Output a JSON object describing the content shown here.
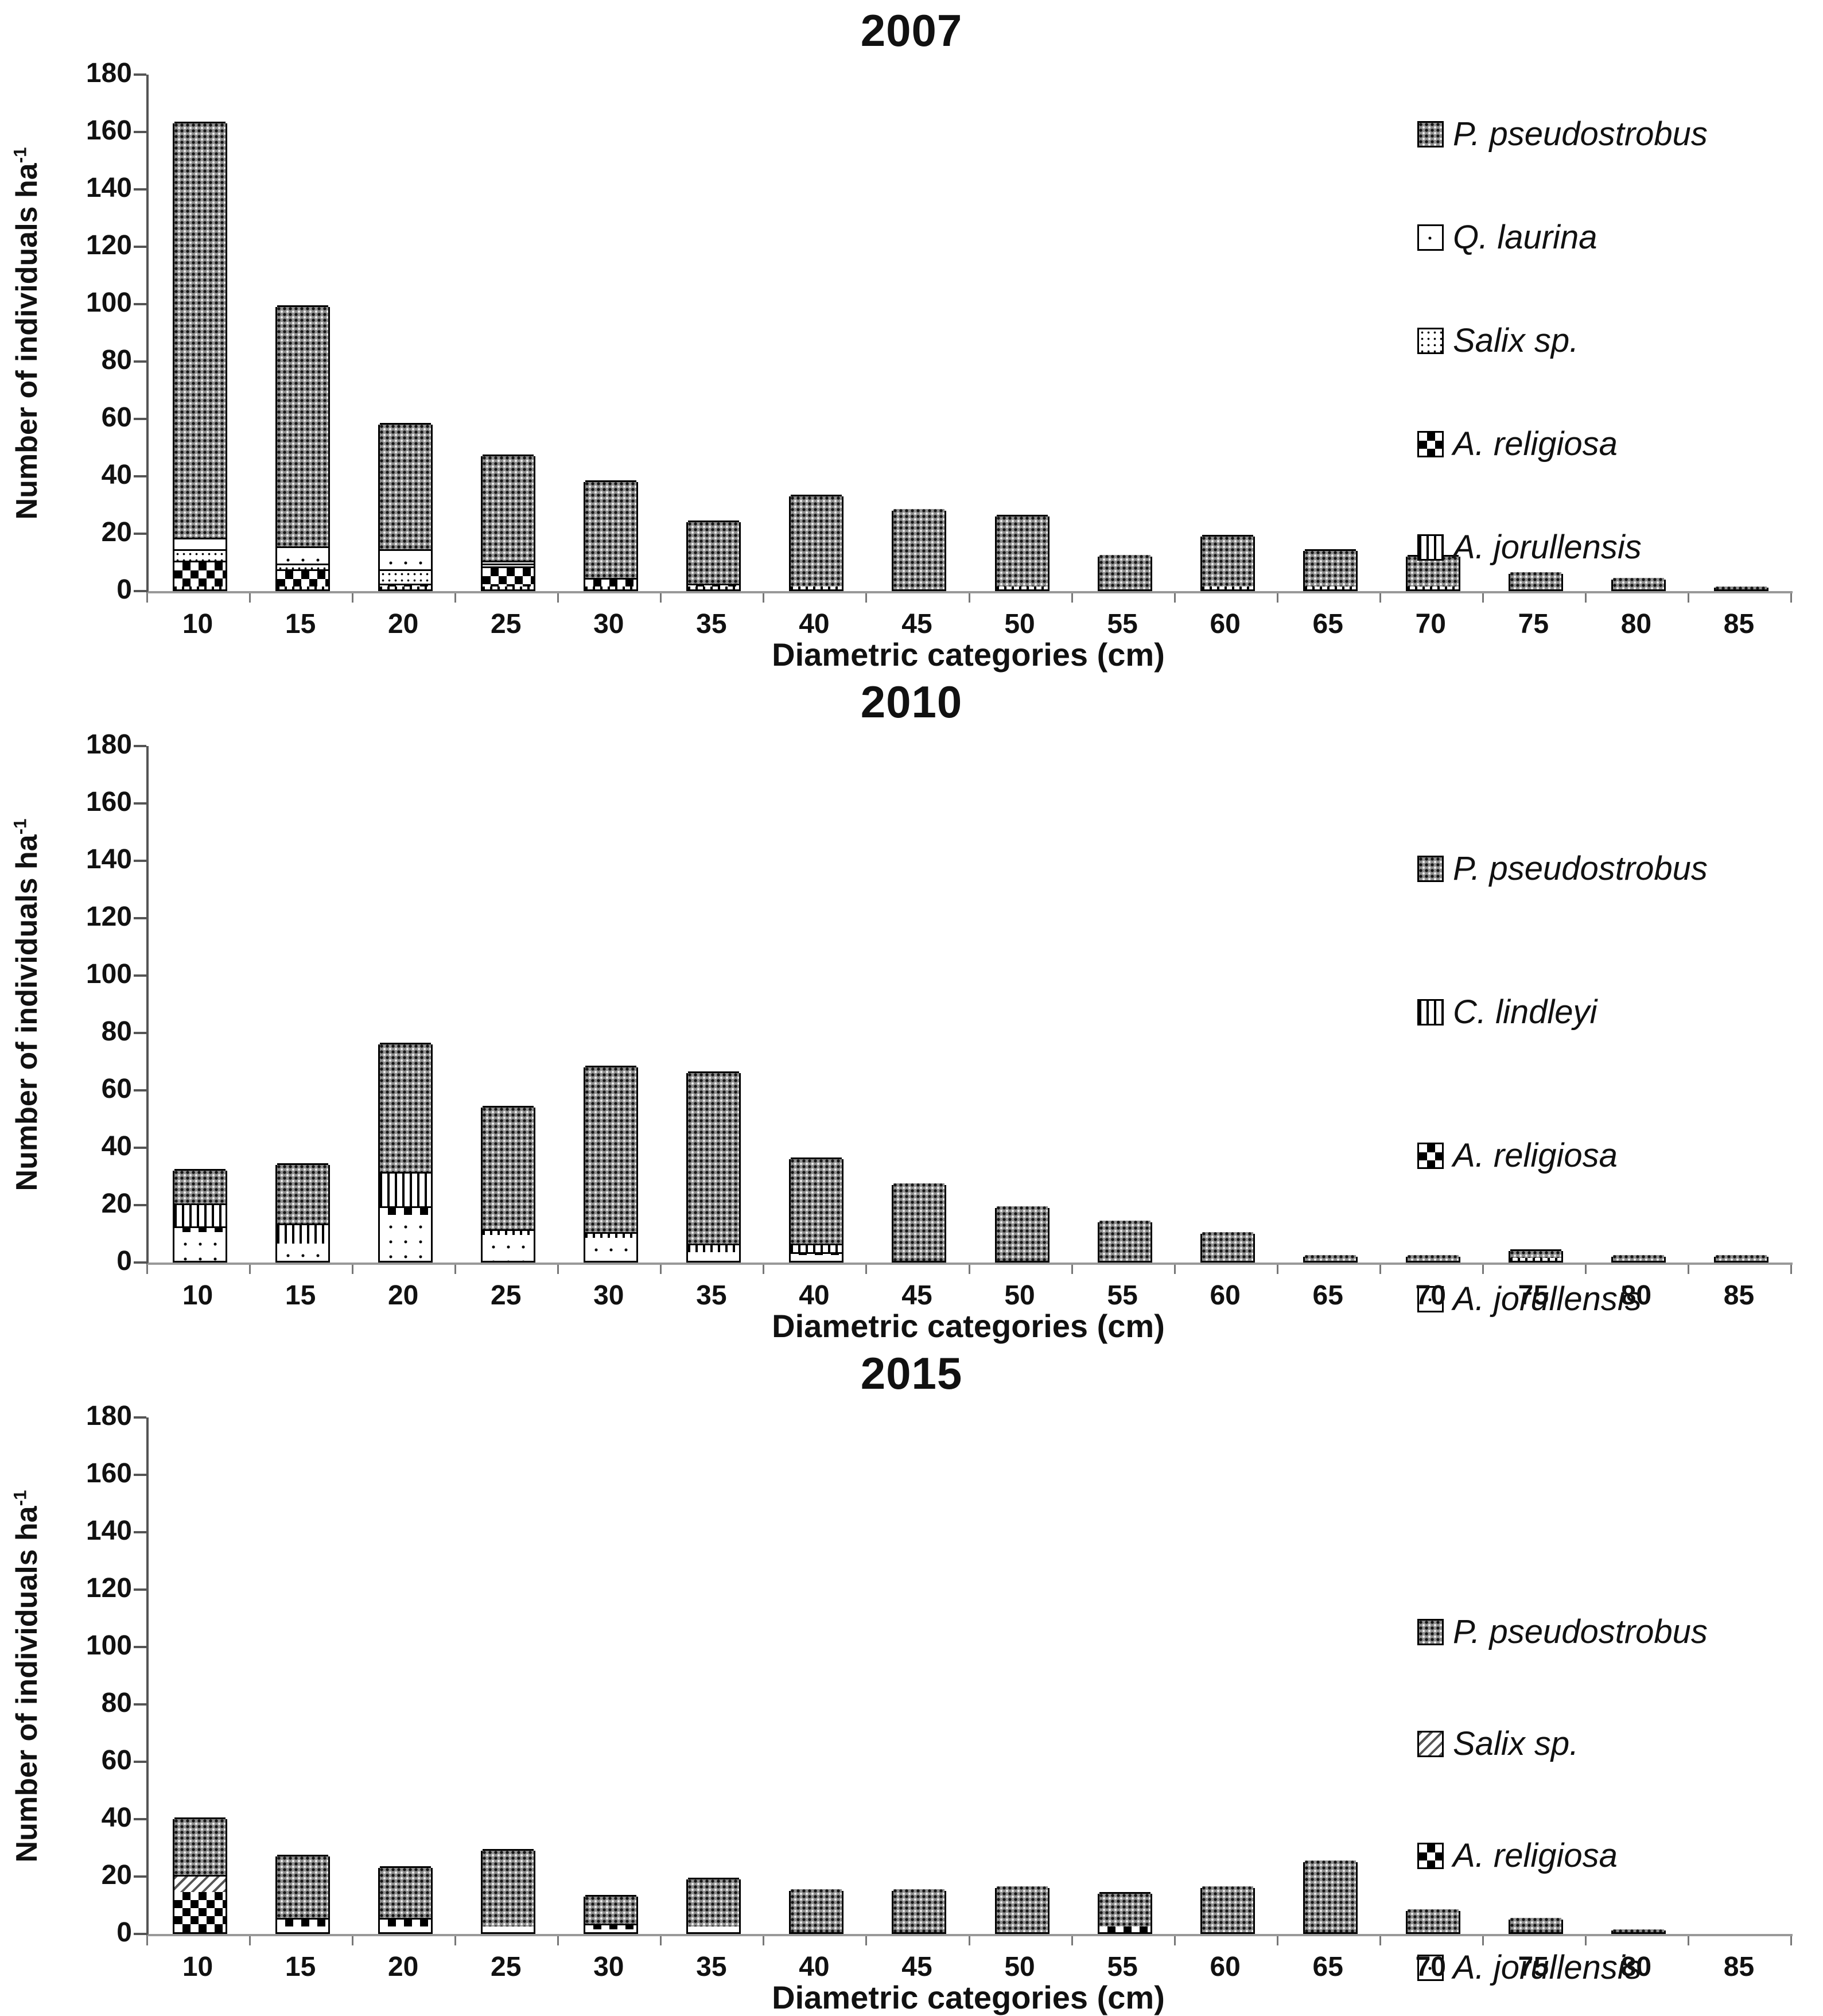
{
  "y_axis": {
    "label": "Number of individuals ha",
    "superscript": "-1",
    "ticks": [
      0,
      20,
      40,
      60,
      80,
      100,
      120,
      140,
      160,
      180
    ]
  },
  "x_axis": {
    "label": "Diametric categories (cm)",
    "categories": [
      10,
      15,
      20,
      25,
      30,
      35,
      40,
      45,
      50,
      55,
      60,
      65,
      70,
      75,
      80,
      85
    ]
  },
  "chart_data": [
    {
      "type": "bar",
      "stacked": true,
      "title": "2007",
      "xlabel": "Diametric categories (cm)",
      "ylabel": "Number of individuals ha-1",
      "ylim": [
        0,
        180
      ],
      "grid": false,
      "legend_position": "upper-right-inside",
      "categories": [
        10,
        15,
        20,
        25,
        30,
        35,
        40,
        45,
        50,
        55,
        60,
        65,
        70,
        75,
        80,
        85
      ],
      "series": [
        {
          "name": "A. jorullensis",
          "pattern": "vlines",
          "values": [
            1,
            1,
            1,
            1,
            1,
            1,
            1,
            0,
            1,
            0,
            1,
            1,
            1,
            0,
            0,
            0
          ]
        },
        {
          "name": "A. religiosa",
          "pattern": "checker",
          "values": [
            9,
            6,
            1,
            7,
            3,
            1,
            0,
            0,
            0,
            0,
            0,
            0,
            0,
            0,
            0,
            0
          ]
        },
        {
          "name": "Salix sp.",
          "pattern": "finedots",
          "values": [
            4,
            2,
            5,
            1,
            0,
            0,
            0,
            0,
            0,
            0,
            0,
            0,
            0,
            0,
            0,
            0
          ]
        },
        {
          "name": "Q. laurina",
          "pattern": "sparsedots",
          "values": [
            4,
            6,
            7,
            1,
            0,
            0,
            0,
            0,
            0,
            0,
            0,
            0,
            0,
            0,
            0,
            0
          ]
        },
        {
          "name": "P. pseudostrobus",
          "pattern": "pinus",
          "values": [
            145,
            84,
            44,
            37,
            34,
            22,
            32,
            28,
            25,
            12,
            18,
            13,
            11,
            6,
            4,
            1
          ]
        }
      ],
      "totals": [
        163,
        99,
        58,
        47,
        38,
        24,
        33,
        28,
        26,
        12,
        19,
        14,
        12,
        6,
        4,
        1
      ],
      "legend": [
        {
          "label": "P. pseudostrobus",
          "pattern": "pinus"
        },
        {
          "label": "Q. laurina",
          "pattern": "sparsedots"
        },
        {
          "label": "Salix sp.",
          "pattern": "finedots"
        },
        {
          "label": "A. religiosa",
          "pattern": "checker"
        },
        {
          "label": "A. jorullensis",
          "pattern": "vlines"
        }
      ]
    },
    {
      "type": "bar",
      "stacked": true,
      "title": "2010",
      "xlabel": "Diametric categories (cm)",
      "ylabel": "Number of individuals ha-1",
      "ylim": [
        0,
        180
      ],
      "grid": false,
      "legend_position": "upper-right-inside",
      "categories": [
        10,
        15,
        20,
        25,
        30,
        35,
        40,
        45,
        50,
        55,
        60,
        65,
        70,
        75,
        80,
        85
      ],
      "series": [
        {
          "name": "A. jorullensis",
          "pattern": "sparsedots",
          "values": [
            10,
            6,
            16,
            9,
            8,
            3,
            2,
            0,
            0,
            0,
            0,
            0,
            0,
            0,
            0,
            0
          ]
        },
        {
          "name": "A. religiosa",
          "pattern": "checker",
          "values": [
            2,
            0,
            3,
            0,
            0,
            0,
            1,
            0,
            0,
            0,
            0,
            0,
            0,
            0,
            0,
            0
          ]
        },
        {
          "name": "C. lindleyi",
          "pattern": "vlines",
          "values": [
            8,
            7,
            12,
            2,
            2,
            3,
            3,
            0,
            0,
            0,
            0,
            0,
            0,
            1,
            0,
            0
          ]
        },
        {
          "name": "P. pseudostrobus",
          "pattern": "pinus",
          "values": [
            12,
            21,
            45,
            43,
            58,
            60,
            30,
            27,
            19,
            14,
            10,
            2,
            2,
            3,
            2,
            2
          ]
        }
      ],
      "totals": [
        32,
        34,
        76,
        54,
        68,
        66,
        36,
        27,
        19,
        14,
        10,
        2,
        2,
        4,
        2,
        2
      ],
      "legend": [
        {
          "label": "P. pseudostrobus",
          "pattern": "pinus"
        },
        {
          "label": "C. lindleyi",
          "pattern": "vlines"
        },
        {
          "label": "A. religiosa",
          "pattern": "checker"
        },
        {
          "label": "A. jorullensis",
          "pattern": "sparsedots"
        }
      ]
    },
    {
      "type": "bar",
      "stacked": true,
      "title": "2015",
      "xlabel": "Diametric categories (cm)",
      "ylabel": "Number of individuals ha-1",
      "ylim": [
        0,
        180
      ],
      "grid": false,
      "legend_position": "upper-right-inside",
      "categories": [
        10,
        15,
        20,
        25,
        30,
        35,
        40,
        45,
        50,
        55,
        60,
        65,
        70,
        75,
        80,
        85
      ],
      "series": [
        {
          "name": "A. jorullensis",
          "pattern": "sparsedots",
          "values": [
            0,
            2,
            2,
            2,
            1,
            2,
            0,
            0,
            0,
            0,
            0,
            0,
            0,
            0,
            0,
            0
          ]
        },
        {
          "name": "A. religiosa",
          "pattern": "checker",
          "values": [
            14,
            3,
            3,
            0,
            2,
            0,
            0,
            0,
            0,
            2,
            0,
            0,
            0,
            0,
            0,
            0
          ]
        },
        {
          "name": "Salix sp.",
          "pattern": "diag",
          "values": [
            6,
            0,
            0,
            0,
            0,
            0,
            0,
            0,
            0,
            0,
            0,
            0,
            0,
            0,
            0,
            0
          ]
        },
        {
          "name": "P. pseudostrobus",
          "pattern": "pinus",
          "values": [
            20,
            22,
            18,
            27,
            10,
            17,
            15,
            15,
            16,
            12,
            16,
            25,
            8,
            5,
            1,
            0
          ]
        }
      ],
      "totals": [
        40,
        27,
        23,
        29,
        13,
        19,
        15,
        15,
        16,
        14,
        16,
        25,
        8,
        5,
        1,
        0
      ],
      "legend": [
        {
          "label": "P. pseudostrobus",
          "pattern": "pinus"
        },
        {
          "label": "Salix sp.",
          "pattern": "diag"
        },
        {
          "label": "A. religiosa",
          "pattern": "checker"
        },
        {
          "label": "A. jorullensis",
          "pattern": "sparsedots"
        }
      ]
    }
  ]
}
